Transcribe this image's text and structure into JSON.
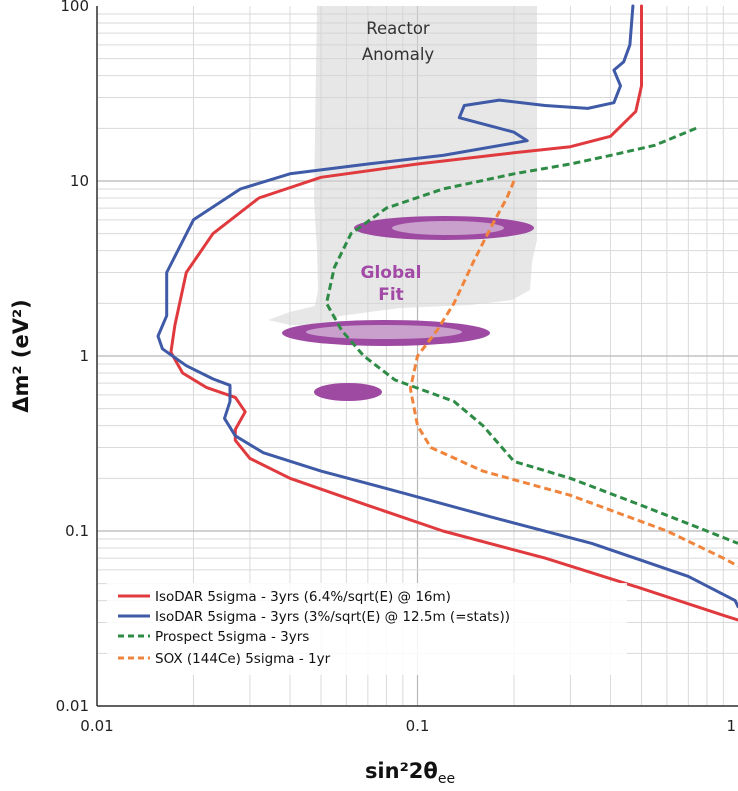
{
  "chart_data": {
    "type": "line",
    "title": "",
    "xlabel": {
      "main": "sin²2θ",
      "sub": "ee"
    },
    "ylabel": "Δm² (eV²)",
    "x_scale": "log",
    "y_scale": "log",
    "xlim": [
      0.01,
      1
    ],
    "ylim": [
      0.01,
      100
    ],
    "x_ticks": [
      0.01,
      0.1,
      1
    ],
    "x_tick_labels": [
      "0.01",
      "0.1",
      "1"
    ],
    "y_ticks": [
      0.01,
      0.1,
      1,
      10,
      100
    ],
    "y_tick_labels": [
      "0.01",
      "0.1",
      "1",
      "10",
      "100"
    ],
    "grid": true,
    "legend_position": "bottom-left",
    "series": [
      {
        "name": "IsoDAR 5sigma - 3yrs (6.4%/sqrt(E) @ 16m)",
        "color": "#e03a3e",
        "dash": "solid",
        "points": [
          [
            0.5,
            100
          ],
          [
            0.5,
            35
          ],
          [
            0.48,
            25
          ],
          [
            0.4,
            18
          ],
          [
            0.3,
            15.7
          ],
          [
            0.2,
            14.5
          ],
          [
            0.1,
            12.5
          ],
          [
            0.05,
            10.5
          ],
          [
            0.032,
            8
          ],
          [
            0.023,
            5
          ],
          [
            0.019,
            3
          ],
          [
            0.0175,
            1.5
          ],
          [
            0.017,
            1.05
          ],
          [
            0.0185,
            0.8
          ],
          [
            0.022,
            0.66
          ],
          [
            0.027,
            0.58
          ],
          [
            0.029,
            0.48
          ],
          [
            0.027,
            0.38
          ],
          [
            0.027,
            0.33
          ],
          [
            0.03,
            0.26
          ],
          [
            0.04,
            0.2
          ],
          [
            0.07,
            0.14
          ],
          [
            0.12,
            0.1
          ],
          [
            0.25,
            0.07
          ],
          [
            0.5,
            0.047
          ],
          [
            0.9,
            0.033
          ],
          [
            1.0,
            0.031
          ]
        ]
      },
      {
        "name": "IsoDAR 5sigma - 3yrs (3%/sqrt(E) @ 12.5m (=stats))",
        "color": "#3f5aa6",
        "dash": "solid",
        "points": [
          [
            0.47,
            100
          ],
          [
            0.46,
            60
          ],
          [
            0.44,
            48
          ],
          [
            0.41,
            43
          ],
          [
            0.43,
            35
          ],
          [
            0.41,
            28
          ],
          [
            0.34,
            26
          ],
          [
            0.25,
            27
          ],
          [
            0.18,
            29
          ],
          [
            0.14,
            27
          ],
          [
            0.135,
            23
          ],
          [
            0.2,
            19
          ],
          [
            0.22,
            17
          ],
          [
            0.12,
            14
          ],
          [
            0.07,
            12.5
          ],
          [
            0.04,
            11
          ],
          [
            0.028,
            9
          ],
          [
            0.02,
            6
          ],
          [
            0.0165,
            3
          ],
          [
            0.0165,
            1.7
          ],
          [
            0.0155,
            1.3
          ],
          [
            0.016,
            1.1
          ],
          [
            0.019,
            0.88
          ],
          [
            0.023,
            0.74
          ],
          [
            0.026,
            0.68
          ],
          [
            0.026,
            0.55
          ],
          [
            0.025,
            0.44
          ],
          [
            0.027,
            0.35
          ],
          [
            0.033,
            0.28
          ],
          [
            0.05,
            0.22
          ],
          [
            0.09,
            0.165
          ],
          [
            0.17,
            0.12
          ],
          [
            0.35,
            0.085
          ],
          [
            0.7,
            0.055
          ],
          [
            0.98,
            0.04
          ],
          [
            1.0,
            0.037
          ]
        ]
      },
      {
        "name": "Prospect 5sigma - 3yrs",
        "color": "#2e8b45",
        "dash": "dashed",
        "points": [
          [
            0.74,
            20
          ],
          [
            0.55,
            16
          ],
          [
            0.4,
            14
          ],
          [
            0.3,
            12.5
          ],
          [
            0.2,
            11
          ],
          [
            0.12,
            9
          ],
          [
            0.08,
            7
          ],
          [
            0.062,
            5
          ],
          [
            0.055,
            3.2
          ],
          [
            0.052,
            2
          ],
          [
            0.058,
            1.4
          ],
          [
            0.068,
            1
          ],
          [
            0.085,
            0.73
          ],
          [
            0.13,
            0.55
          ],
          [
            0.16,
            0.4
          ],
          [
            0.2,
            0.25
          ],
          [
            0.3,
            0.2
          ],
          [
            0.5,
            0.14
          ],
          [
            0.8,
            0.1
          ],
          [
            1.0,
            0.085
          ]
        ]
      },
      {
        "name": "SOX (144Ce) 5sigma - 1yr",
        "color": "#f0843c",
        "dash": "dashed",
        "points": [
          [
            0.2,
            10
          ],
          [
            0.19,
            8
          ],
          [
            0.17,
            5.5
          ],
          [
            0.15,
            3.5
          ],
          [
            0.13,
            2
          ],
          [
            0.115,
            1.4
          ],
          [
            0.1,
            1
          ],
          [
            0.095,
            0.65
          ],
          [
            0.1,
            0.4
          ],
          [
            0.11,
            0.3
          ],
          [
            0.16,
            0.22
          ],
          [
            0.3,
            0.16
          ],
          [
            0.6,
            0.1
          ],
          [
            0.9,
            0.07
          ],
          [
            1.0,
            0.063
          ]
        ]
      }
    ],
    "regions": [
      {
        "label": "Reactor Anomaly",
        "color": "#d7d7d7"
      },
      {
        "label": "Global Fit",
        "color": "#9e4aa3"
      }
    ]
  }
}
